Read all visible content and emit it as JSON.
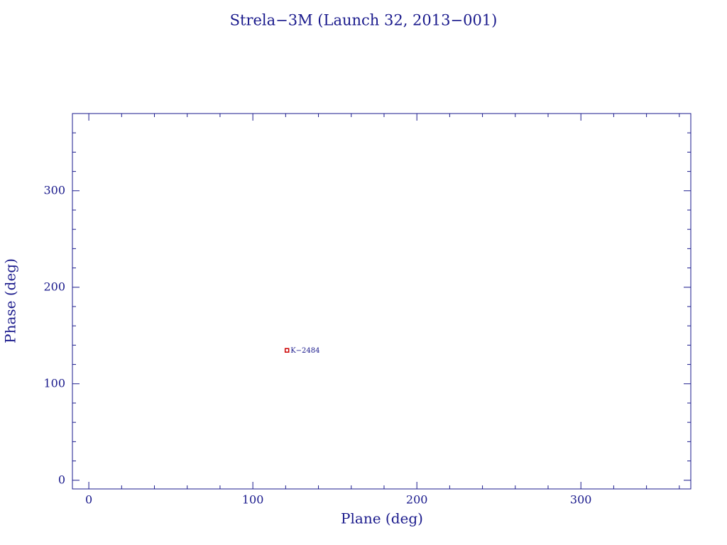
{
  "chart_data": {
    "type": "scatter",
    "title": "Strela−3M (Launch 32, 2013−001)",
    "xlabel": "Plane (deg)",
    "ylabel": "Phase (deg)",
    "xlim": [
      -10,
      367
    ],
    "ylim": [
      -9,
      380
    ],
    "xticks": [
      0,
      100,
      200,
      300
    ],
    "yticks": [
      0,
      100,
      200,
      300
    ],
    "xminorticks": [
      20,
      40,
      60,
      80,
      120,
      140,
      160,
      180,
      220,
      240,
      260,
      280,
      320,
      340,
      360
    ],
    "yminorticks": [
      20,
      40,
      60,
      80,
      120,
      140,
      160,
      180,
      220,
      240,
      260,
      280,
      320,
      340,
      360
    ],
    "series": [
      {
        "x": [
          120.8
        ],
        "values": [
          134.6
        ],
        "labels": [
          "K−2484"
        ],
        "color": "#cc0000"
      }
    ]
  }
}
